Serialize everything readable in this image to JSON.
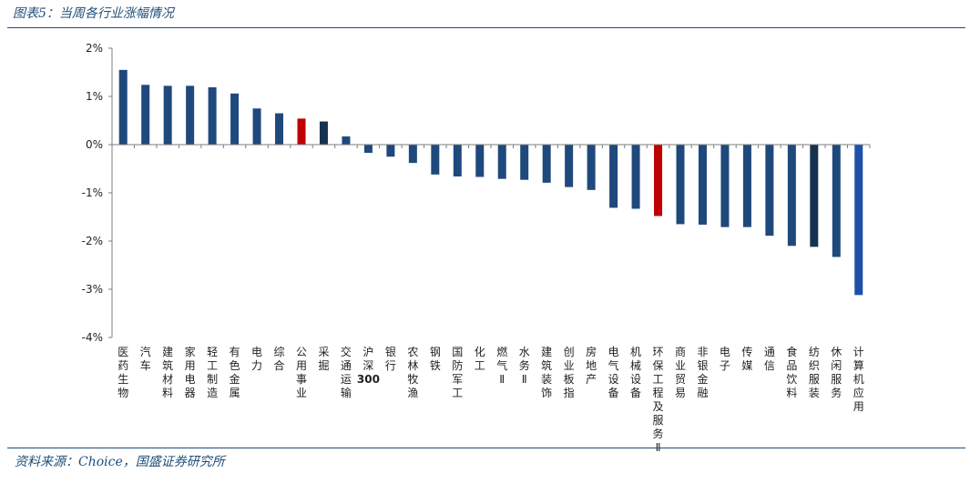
{
  "header": {
    "title": "图表5：当周各行业涨幅情况"
  },
  "footer": {
    "source": "资料来源：Choice，国盛证券研究所"
  },
  "colors": {
    "bar_default": "#1f497d",
    "bar_highlight": "#c00000",
    "bar_last": "#1f4fa8",
    "axis": "#7f7f7f"
  },
  "chart_data": {
    "type": "bar",
    "title": "当周各行业涨幅情况",
    "xlabel": "",
    "ylabel": "",
    "ylim": [
      -4,
      2
    ],
    "yticks": [
      "2%",
      "1%",
      "0%",
      "-1%",
      "-2%",
      "-3%",
      "-4%"
    ],
    "ytick_values": [
      2,
      1,
      0,
      -1,
      -2,
      -3,
      -4
    ],
    "unit": "%",
    "categories": [
      "医药生物",
      "汽车",
      "建筑材料",
      "家用电器",
      "轻工制造",
      "有色金属",
      "电力",
      "综合",
      "公用事业",
      "采掘",
      "交通运输",
      "沪深300",
      "银行",
      "农林牧渔",
      "钢铁",
      "国防军工",
      "化工",
      "燃气Ⅱ",
      "水务Ⅱ",
      "建筑装饰",
      "创业板指",
      "房地产",
      "电气设备",
      "机械设备",
      "环保工程及服务Ⅱ",
      "商业贸易",
      "非银金融",
      "电子",
      "传媒",
      "通信",
      "食品饮料",
      "纺织服装",
      "休闲服务",
      "计算机应用"
    ],
    "values": [
      1.55,
      1.24,
      1.22,
      1.22,
      1.19,
      1.06,
      0.75,
      0.65,
      0.54,
      0.48,
      0.17,
      -0.17,
      -0.25,
      -0.38,
      -0.62,
      -0.66,
      -0.67,
      -0.71,
      -0.73,
      -0.79,
      -0.88,
      -0.94,
      -1.31,
      -1.33,
      -1.48,
      -1.65,
      -1.66,
      -1.71,
      -1.71,
      -1.89,
      -2.1,
      -2.12,
      -2.33,
      -3.12
    ],
    "highlight": [
      "公用事业",
      "环保工程及服务Ⅱ"
    ],
    "dark": [
      "采掘",
      "纺织服装"
    ],
    "grid": false
  }
}
